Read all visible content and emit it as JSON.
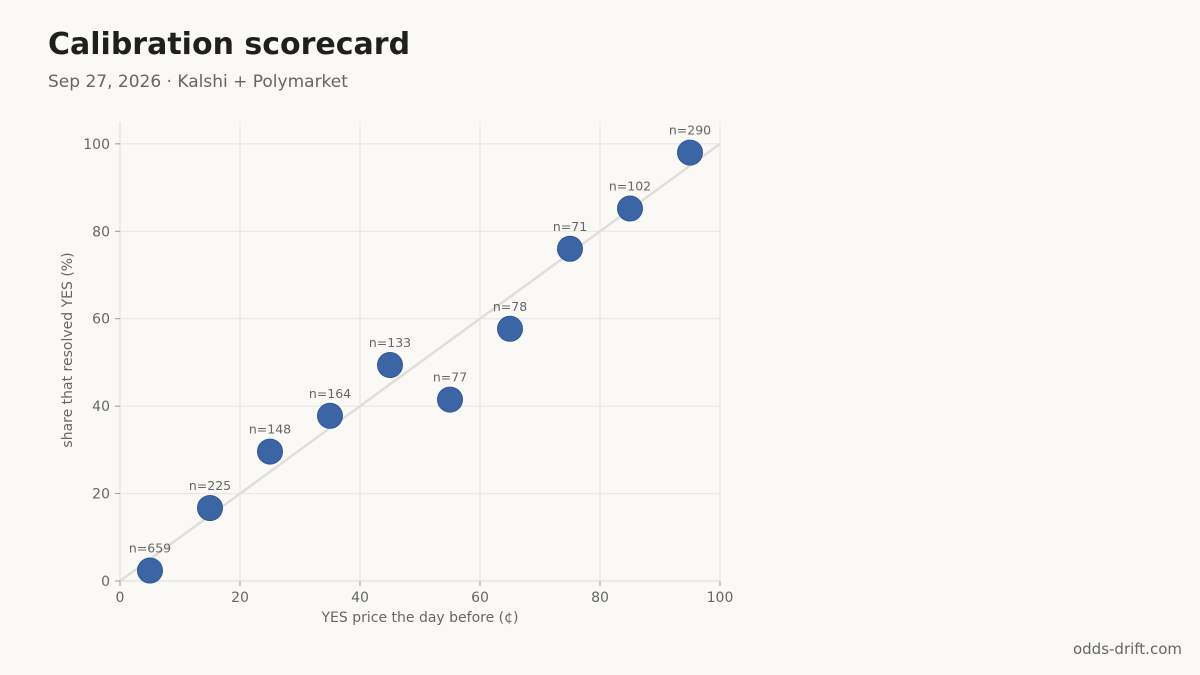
{
  "header": {
    "title": "Calibration scorecard",
    "subtitle": "Sep 27, 2026 · Kalshi + Polymarket"
  },
  "footer": {
    "source": "odds-drift.com"
  },
  "colors": {
    "point": "#3c65a5",
    "diagonal": "#e0deda",
    "grid": "#e7e5e1",
    "text": "#666666"
  },
  "chart_data": {
    "type": "scatter",
    "xlabel": "YES price the day before (¢)",
    "ylabel": "share that resolved YES (%)",
    "xlim": [
      0,
      100
    ],
    "ylim": [
      0,
      105
    ],
    "xticks": [
      0,
      20,
      40,
      60,
      80,
      100
    ],
    "yticks": [
      0,
      20,
      40,
      60,
      80,
      100
    ],
    "grid": true,
    "reference_line": "y = x",
    "points": [
      {
        "x": 5,
        "y": 2.4,
        "label": "n=659"
      },
      {
        "x": 15,
        "y": 16.7,
        "label": "n=225"
      },
      {
        "x": 25,
        "y": 29.6,
        "label": "n=148"
      },
      {
        "x": 35,
        "y": 37.8,
        "label": "n=164"
      },
      {
        "x": 45,
        "y": 49.4,
        "label": "n=133"
      },
      {
        "x": 55,
        "y": 41.5,
        "label": "n=77"
      },
      {
        "x": 65,
        "y": 57.7,
        "label": "n=78"
      },
      {
        "x": 75,
        "y": 76.0,
        "label": "n=71"
      },
      {
        "x": 85,
        "y": 85.2,
        "label": "n=102"
      },
      {
        "x": 95,
        "y": 98.0,
        "label": "n=290"
      }
    ]
  }
}
